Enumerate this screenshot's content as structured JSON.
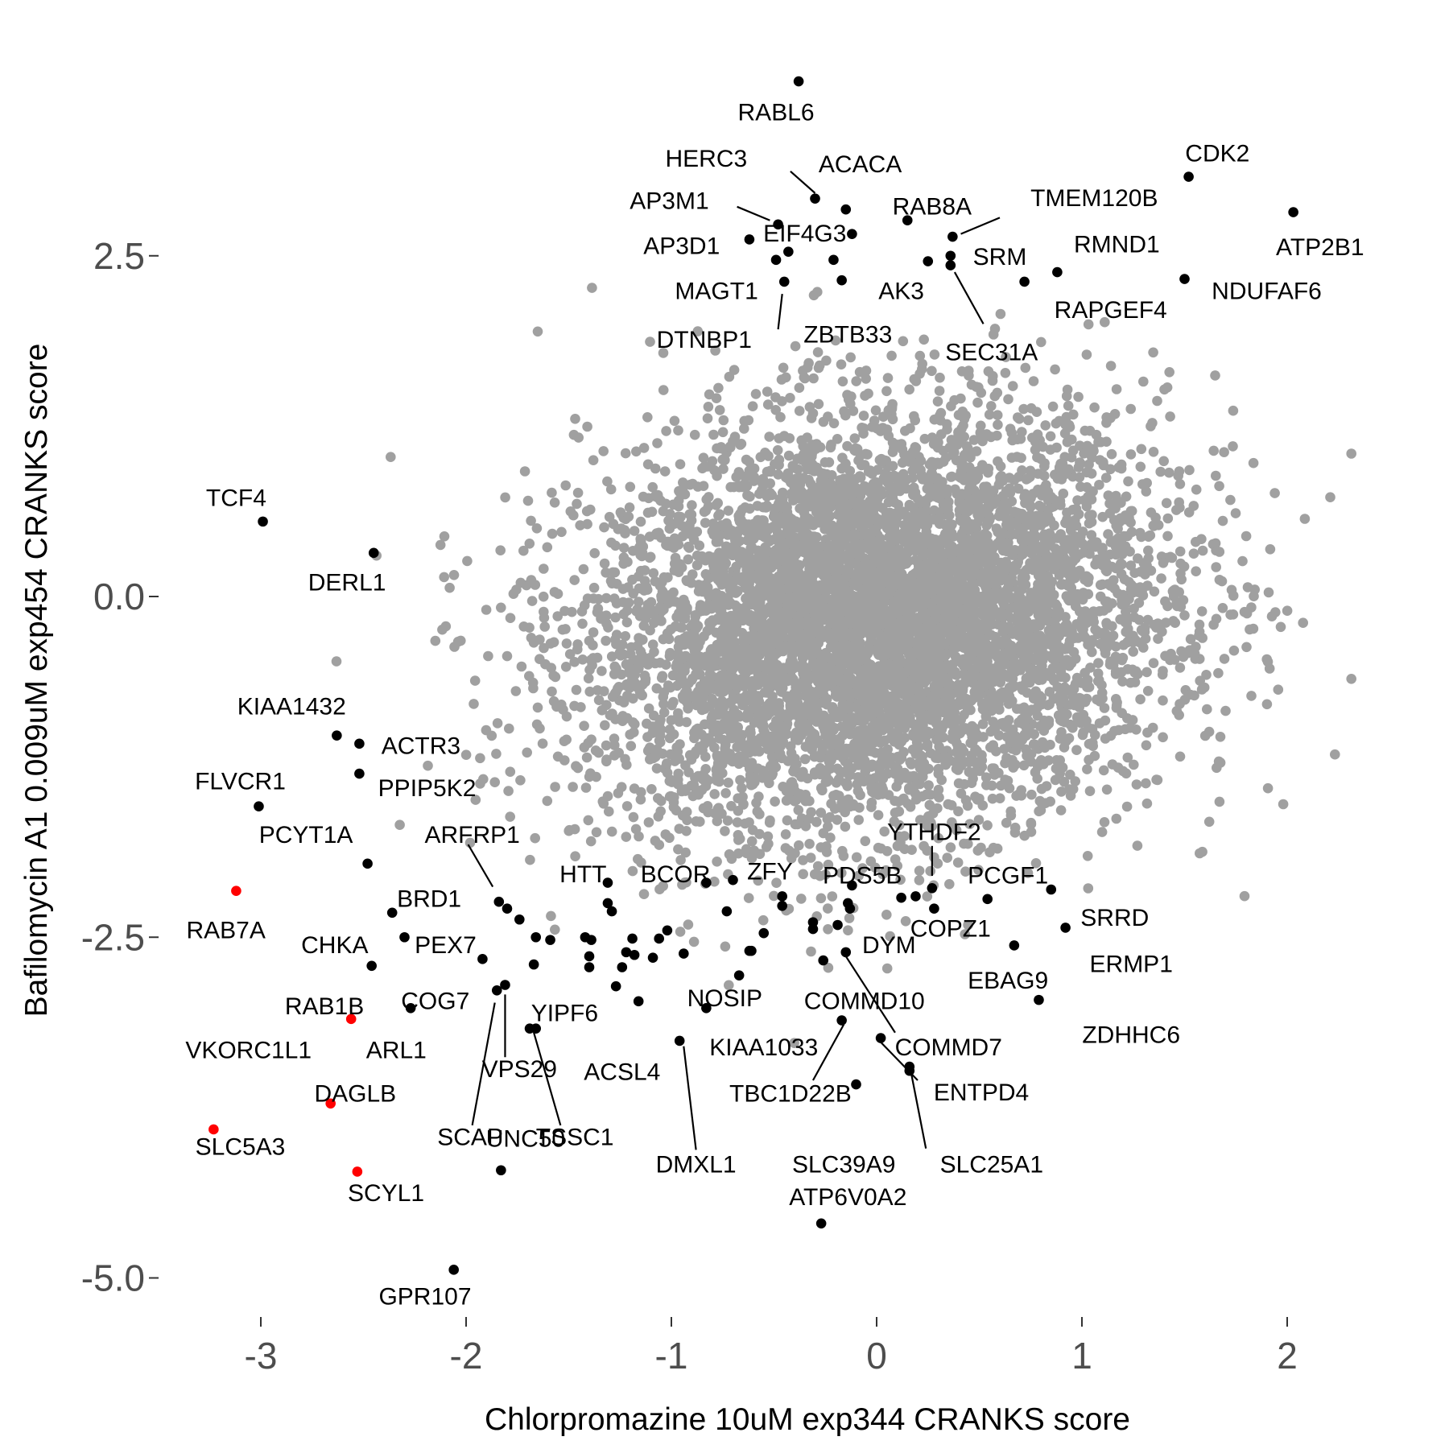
{
  "chart_data": {
    "type": "scatter",
    "title": "",
    "xlabel": "Chlorpromazine 10uM exp344 CRANKS score",
    "ylabel": "Bafilomycin A1 0.009uM exp454 CRANKS score",
    "xlim": [
      -3.5,
      2.6
    ],
    "ylim": [
      -5.45,
      3.75
    ],
    "x_ticks": [
      -3,
      -2,
      -1,
      0,
      1,
      2
    ],
    "x_tick_labels": [
      "-3",
      "-2",
      "-1",
      "0",
      "1",
      "2"
    ],
    "y_ticks": [
      2.5,
      0.0,
      -2.5,
      -5.0
    ],
    "y_tick_labels": [
      "2.5",
      "0.0",
      "-2.5",
      "-5.0"
    ],
    "grid": false,
    "legend": "none",
    "colors": {
      "background": "#ffffff",
      "highlighted": "#000000",
      "special": "#ff0000",
      "other_genes": "#a0a0a0"
    },
    "background_cloud": {
      "x_center": 0.0,
      "y_center": -0.2,
      "x_sd": 0.7,
      "y_sd": 0.75,
      "count": 6500
    },
    "highlighted_points": [
      {
        "gene": "RABL6",
        "x": -0.38,
        "y": 3.78
      },
      {
        "gene": "CDK2",
        "x": 1.52,
        "y": 3.08
      },
      {
        "gene": "ATP2B1",
        "x": 2.03,
        "y": 2.82
      },
      {
        "gene": "HERC3",
        "x": -0.3,
        "y": 2.92
      },
      {
        "gene": "ACACA",
        "x": -0.15,
        "y": 2.84
      },
      {
        "gene": "AP3M1",
        "x": -0.48,
        "y": 2.73
      },
      {
        "gene": "EIF4G3",
        "x": -0.12,
        "y": 2.66
      },
      {
        "gene": "AP3D1",
        "x": -0.62,
        "y": 2.62
      },
      {
        "gene": "RAB8A",
        "x": 0.15,
        "y": 2.76
      },
      {
        "gene": "TMEM120B",
        "x": 0.37,
        "y": 2.64
      },
      {
        "gene": "SRM",
        "x": 0.36,
        "y": 2.5
      },
      {
        "gene": "AK3",
        "x": 0.25,
        "y": 2.46
      },
      {
        "gene": "RMND1",
        "x": 0.88,
        "y": 2.38
      },
      {
        "gene": "NDUFAF6",
        "x": 1.5,
        "y": 2.33
      },
      {
        "gene": "RAPGEF4",
        "x": 0.72,
        "y": 2.31
      },
      {
        "gene": "MAGT1",
        "x": -0.45,
        "y": 2.31
      },
      {
        "gene": "ZBTB33",
        "x": -0.17,
        "y": 2.32
      },
      {
        "gene": "SEC31A",
        "x": 0.36,
        "y": 2.43
      },
      {
        "gene": "DTNBP1",
        "x": -0.43,
        "y": 2.53
      },
      {
        "gene": "UNLABELED_1",
        "x": -0.49,
        "y": 2.47
      },
      {
        "gene": "UNLABELED_2",
        "x": -0.21,
        "y": 2.47
      },
      {
        "gene": "TCF4",
        "x": -2.99,
        "y": 0.55
      },
      {
        "gene": "DERL1",
        "x": -2.45,
        "y": 0.32
      },
      {
        "gene": "KIAA1432",
        "x": -2.63,
        "y": -1.02
      },
      {
        "gene": "ACTR3",
        "x": -2.52,
        "y": -1.08
      },
      {
        "gene": "PPIP5K2",
        "x": -2.52,
        "y": -1.3
      },
      {
        "gene": "FLVCR1",
        "x": -3.01,
        "y": -1.54
      },
      {
        "gene": "PCYT1A",
        "x": -2.48,
        "y": -1.96
      },
      {
        "gene": "BRD1",
        "x": -2.36,
        "y": -2.32
      },
      {
        "gene": "ARFRP1",
        "x": -1.84,
        "y": -2.24
      },
      {
        "gene": "CHKA",
        "x": -2.3,
        "y": -2.5
      },
      {
        "gene": "PEX7",
        "x": -1.92,
        "y": -2.66
      },
      {
        "gene": "RAB1B",
        "x": -2.46,
        "y": -2.71
      },
      {
        "gene": "COG7",
        "x": -2.27,
        "y": -3.02
      },
      {
        "gene": "YIPF6",
        "x": -1.81,
        "y": -2.85
      },
      {
        "gene": "VPS29",
        "x": -1.85,
        "y": -2.89
      },
      {
        "gene": "SCAP",
        "x": -1.66,
        "y": -3.17
      },
      {
        "gene": "TSSC1",
        "x": -1.69,
        "y": -3.17
      },
      {
        "gene": "ACSL4",
        "x": -1.4,
        "y": -2.64
      },
      {
        "gene": "UNC50",
        "x": -1.83,
        "y": -4.21
      },
      {
        "gene": "GPR107",
        "x": -2.06,
        "y": -4.94
      },
      {
        "gene": "HTT",
        "x": -1.31,
        "y": -2.1
      },
      {
        "gene": "BCOR",
        "x": -0.83,
        "y": -2.1
      },
      {
        "gene": "ZFY",
        "x": -0.7,
        "y": -2.08
      },
      {
        "gene": "NOSIP",
        "x": -0.67,
        "y": -2.78
      },
      {
        "gene": "KIAA1033",
        "x": -0.83,
        "y": -3.02
      },
      {
        "gene": "DMXL1",
        "x": -0.96,
        "y": -3.26
      },
      {
        "gene": "PDS5B",
        "x": -0.12,
        "y": -2.12
      },
      {
        "gene": "YTHDF2",
        "x": 0.27,
        "y": -2.14
      },
      {
        "gene": "PCGF1",
        "x": 0.54,
        "y": -2.22
      },
      {
        "gene": "DYM",
        "x": -0.15,
        "y": -2.61
      },
      {
        "gene": "COPZ1",
        "x": 0.28,
        "y": -2.29
      },
      {
        "gene": "COMMD10",
        "x": -0.26,
        "y": -2.67
      },
      {
        "gene": "COMMD7",
        "x": 0.02,
        "y": -3.24
      },
      {
        "gene": "ENTPD4",
        "x": 0.16,
        "y": -3.45
      },
      {
        "gene": "TBC1D22B",
        "x": -0.17,
        "y": -3.11
      },
      {
        "gene": "SLC39A9",
        "x": -0.1,
        "y": -3.58
      },
      {
        "gene": "SLC25A1",
        "x": 0.16,
        "y": -3.48
      },
      {
        "gene": "SRRD",
        "x": 0.85,
        "y": -2.15
      },
      {
        "gene": "ERMP1",
        "x": 0.92,
        "y": -2.43
      },
      {
        "gene": "EBAG9",
        "x": 0.67,
        "y": -2.56
      },
      {
        "gene": "ZDHHC6",
        "x": 0.79,
        "y": -2.96
      },
      {
        "gene": "ATP6V0A2",
        "x": -0.27,
        "y": -4.6
      },
      {
        "gene": "UNLABELED_3",
        "x": -1.66,
        "y": -2.5
      },
      {
        "gene": "UNLABELED_4",
        "x": -1.59,
        "y": -2.52
      },
      {
        "gene": "UNLABELED_5",
        "x": -1.42,
        "y": -2.5
      },
      {
        "gene": "UNLABELED_6",
        "x": -1.39,
        "y": -2.52
      },
      {
        "gene": "UNLABELED_7",
        "x": -1.29,
        "y": -2.31
      },
      {
        "gene": "UNLABELED_8",
        "x": -1.22,
        "y": -2.61
      },
      {
        "gene": "UNLABELED_9",
        "x": -1.19,
        "y": -2.51
      },
      {
        "gene": "UNLABELED_10",
        "x": -1.06,
        "y": -2.51
      },
      {
        "gene": "UNLABELED_11",
        "x": -1.02,
        "y": -2.45
      },
      {
        "gene": "UNLABELED_12",
        "x": -1.67,
        "y": -2.7
      },
      {
        "gene": "UNLABELED_13",
        "x": -1.4,
        "y": -2.72
      },
      {
        "gene": "UNLABELED_14",
        "x": -1.24,
        "y": -2.72
      },
      {
        "gene": "UNLABELED_15",
        "x": -1.18,
        "y": -2.63
      },
      {
        "gene": "UNLABELED_16",
        "x": -1.09,
        "y": -2.65
      },
      {
        "gene": "UNLABELED_17",
        "x": -0.94,
        "y": -2.62
      },
      {
        "gene": "UNLABELED_18",
        "x": -1.16,
        "y": -2.97
      },
      {
        "gene": "UNLABELED_19",
        "x": -1.27,
        "y": -2.86
      },
      {
        "gene": "UNLABELED_20",
        "x": -1.74,
        "y": -2.37
      },
      {
        "gene": "UNLABELED_21",
        "x": -1.8,
        "y": -2.29
      },
      {
        "gene": "UNLABELED_22",
        "x": -1.31,
        "y": -2.25
      },
      {
        "gene": "UNLABELED_23",
        "x": -0.55,
        "y": -2.47
      },
      {
        "gene": "UNLABELED_24",
        "x": -0.61,
        "y": -2.6
      },
      {
        "gene": "UNLABELED_25",
        "x": -0.62,
        "y": -2.6
      },
      {
        "gene": "UNLABELED_26",
        "x": -0.46,
        "y": -2.2
      },
      {
        "gene": "UNLABELED_27",
        "x": -0.46,
        "y": -2.27
      },
      {
        "gene": "UNLABELED_28",
        "x": -0.31,
        "y": -2.39
      },
      {
        "gene": "UNLABELED_29",
        "x": -0.31,
        "y": -2.44
      },
      {
        "gene": "UNLABELED_30",
        "x": -0.19,
        "y": -2.41
      },
      {
        "gene": "UNLABELED_31",
        "x": -0.14,
        "y": -2.25
      },
      {
        "gene": "UNLABELED_32",
        "x": -0.13,
        "y": -2.29
      },
      {
        "gene": "UNLABELED_33",
        "x": 0.12,
        "y": -2.21
      },
      {
        "gene": "UNLABELED_34",
        "x": 0.19,
        "y": -2.2
      },
      {
        "gene": "UNLABELED_35",
        "x": -0.73,
        "y": -2.31
      }
    ],
    "red_points": [
      {
        "gene": "RAB7A",
        "x": -3.12,
        "y": -2.16
      },
      {
        "gene": "VKORC1L1",
        "x": -2.56,
        "y": -3.1
      },
      {
        "gene": "DAGLB",
        "x": -2.66,
        "y": -3.72
      },
      {
        "gene": "SLC5A3",
        "x": -3.23,
        "y": -3.91
      },
      {
        "gene": "SCYL1",
        "x": -2.53,
        "y": -4.22
      }
    ],
    "labels": [
      {
        "text": "RABL6",
        "x": -0.49,
        "y": 3.55
      },
      {
        "text": "HERC3",
        "x": -0.83,
        "y": 3.21
      },
      {
        "text": "ACACA",
        "x": -0.08,
        "y": 3.17
      },
      {
        "text": "CDK2",
        "x": 1.66,
        "y": 3.25
      },
      {
        "text": "AP3M1",
        "x": -1.01,
        "y": 2.9
      },
      {
        "text": "RAB8A",
        "x": 0.27,
        "y": 2.86
      },
      {
        "text": "TMEM120B",
        "x": 1.06,
        "y": 2.92
      },
      {
        "text": "EIF4G3",
        "x": -0.35,
        "y": 2.66
      },
      {
        "text": "AP3D1",
        "x": -0.95,
        "y": 2.57
      },
      {
        "text": "RMND1",
        "x": 1.17,
        "y": 2.58
      },
      {
        "text": "ATP2B1",
        "x": 2.16,
        "y": 2.56
      },
      {
        "text": "SRM",
        "x": 0.6,
        "y": 2.49
      },
      {
        "text": "AK3",
        "x": 0.12,
        "y": 2.24
      },
      {
        "text": "MAGT1",
        "x": -0.78,
        "y": 2.24
      },
      {
        "text": "NDUFAF6",
        "x": 1.9,
        "y": 2.24
      },
      {
        "text": "RAPGEF4",
        "x": 1.14,
        "y": 2.1
      },
      {
        "text": "ZBTB33",
        "x": -0.14,
        "y": 1.92
      },
      {
        "text": "DTNBP1",
        "x": -0.84,
        "y": 1.88
      },
      {
        "text": "SEC31A",
        "x": 0.56,
        "y": 1.79
      },
      {
        "text": "TCF4",
        "x": -3.12,
        "y": 0.72
      },
      {
        "text": "DERL1",
        "x": -2.58,
        "y": 0.1
      },
      {
        "text": "KIAA1432",
        "x": -2.85,
        "y": -0.81
      },
      {
        "text": "ACTR3",
        "x": -2.22,
        "y": -1.1
      },
      {
        "text": "FLVCR1",
        "x": -3.1,
        "y": -1.36
      },
      {
        "text": "PPIP5K2",
        "x": -2.19,
        "y": -1.41
      },
      {
        "text": "PCYT1A",
        "x": -2.78,
        "y": -1.75
      },
      {
        "text": "ARFRP1",
        "x": -1.97,
        "y": -1.75
      },
      {
        "text": "HTT",
        "x": -1.43,
        "y": -2.04
      },
      {
        "text": "BCOR",
        "x": -0.98,
        "y": -2.04
      },
      {
        "text": "ZFY",
        "x": -0.52,
        "y": -2.02
      },
      {
        "text": "PDS5B",
        "x": -0.07,
        "y": -2.05
      },
      {
        "text": "PCGF1",
        "x": 0.64,
        "y": -2.05
      },
      {
        "text": "YTHDF2",
        "x": 0.28,
        "y": -1.73
      },
      {
        "text": "BRD1",
        "x": -2.18,
        "y": -2.22
      },
      {
        "text": "RAB7A",
        "x": -3.17,
        "y": -2.45
      },
      {
        "text": "CHKA",
        "x": -2.64,
        "y": -2.56
      },
      {
        "text": "PEX7",
        "x": -2.1,
        "y": -2.56
      },
      {
        "text": "SRRD",
        "x": 1.16,
        "y": -2.36
      },
      {
        "text": "DYM",
        "x": 0.06,
        "y": -2.56
      },
      {
        "text": "COPZ1",
        "x": 0.36,
        "y": -2.44
      },
      {
        "text": "ERMP1",
        "x": 1.24,
        "y": -2.7
      },
      {
        "text": "EBAG9",
        "x": 0.64,
        "y": -2.82
      },
      {
        "text": "RAB1B",
        "x": -2.69,
        "y": -3.01
      },
      {
        "text": "COG7",
        "x": -2.15,
        "y": -2.97
      },
      {
        "text": "NOSIP",
        "x": -0.74,
        "y": -2.95
      },
      {
        "text": "COMMD10",
        "x": -0.06,
        "y": -2.97
      },
      {
        "text": "YIPF6",
        "x": -1.52,
        "y": -3.06
      },
      {
        "text": "ZDHHC6",
        "x": 1.24,
        "y": -3.22
      },
      {
        "text": "VKORC1L1",
        "x": -3.06,
        "y": -3.33
      },
      {
        "text": "ARL1",
        "x": -2.34,
        "y": -3.33
      },
      {
        "text": "KIAA1033",
        "x": -0.55,
        "y": -3.31
      },
      {
        "text": "COMMD7",
        "x": 0.35,
        "y": -3.31
      },
      {
        "text": "VPS29",
        "x": -1.74,
        "y": -3.47
      },
      {
        "text": "ACSL4",
        "x": -1.24,
        "y": -3.49
      },
      {
        "text": "DAGLB",
        "x": -2.54,
        "y": -3.65
      },
      {
        "text": "TBC1D22B",
        "x": -0.42,
        "y": -3.65
      },
      {
        "text": "ENTPD4",
        "x": 0.51,
        "y": -3.64
      },
      {
        "text": "SCAP",
        "x": -1.98,
        "y": -3.97
      },
      {
        "text": "TSSC1",
        "x": -1.47,
        "y": -3.97
      },
      {
        "text": "DMXL1",
        "x": -0.88,
        "y": -4.17
      },
      {
        "text": "SLC39A9",
        "x": -0.16,
        "y": -4.17
      },
      {
        "text": "SLC25A1",
        "x": 0.56,
        "y": -4.17
      },
      {
        "text": "UNC50",
        "x": -1.71,
        "y": -3.98
      },
      {
        "text": "SLC5A3",
        "x": -3.1,
        "y": -4.04
      },
      {
        "text": "SCYL1",
        "x": -2.39,
        "y": -4.38
      },
      {
        "text": "ATP6V0A2",
        "x": -0.14,
        "y": -4.41
      },
      {
        "text": "GPR107",
        "x": -2.2,
        "y": -5.14
      }
    ],
    "leader_lines": [
      {
        "x1": -0.42,
        "y1": 3.12,
        "x2": -0.3,
        "y2": 2.96
      },
      {
        "x1": -0.68,
        "y1": 2.86,
        "x2": -0.52,
        "y2": 2.76
      },
      {
        "x1": 0.41,
        "y1": 2.66,
        "x2": 0.6,
        "y2": 2.78
      },
      {
        "x1": 0.38,
        "y1": 2.38,
        "x2": 0.52,
        "y2": 2.0
      },
      {
        "x1": -0.46,
        "y1": 2.22,
        "x2": -0.48,
        "y2": 1.96
      },
      {
        "x1": -1.99,
        "y1": -1.82,
        "x2": -1.87,
        "y2": -2.13
      },
      {
        "x1": 0.27,
        "y1": -1.83,
        "x2": 0.27,
        "y2": -2.05
      },
      {
        "x1": -1.86,
        "y1": -2.98,
        "x2": -1.97,
        "y2": -3.88
      },
      {
        "x1": -1.81,
        "y1": -2.92,
        "x2": -1.81,
        "y2": -3.38
      },
      {
        "x1": -1.67,
        "y1": -3.2,
        "x2": -1.54,
        "y2": -3.88
      },
      {
        "x1": -0.94,
        "y1": -3.3,
        "x2": -0.88,
        "y2": -4.06
      },
      {
        "x1": -0.15,
        "y1": -2.64,
        "x2": 0.09,
        "y2": -3.2
      },
      {
        "x1": 0.02,
        "y1": -3.27,
        "x2": 0.2,
        "y2": -3.55
      },
      {
        "x1": -0.16,
        "y1": -3.14,
        "x2": -0.31,
        "y2": -3.55
      },
      {
        "x1": 0.17,
        "y1": -3.51,
        "x2": 0.24,
        "y2": -4.05
      }
    ]
  }
}
